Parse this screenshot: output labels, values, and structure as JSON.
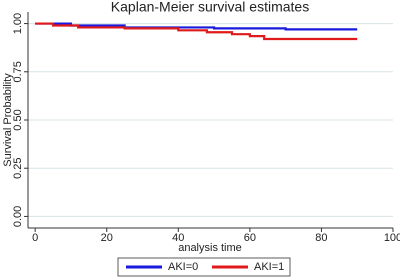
{
  "chart_data": {
    "type": "line",
    "step": true,
    "title": "Kaplan-Meier survival estimates",
    "x_label": "analysis time",
    "y_label": "Survival Probability",
    "xlim": [
      -2,
      100
    ],
    "xticks": [
      0,
      20,
      40,
      60,
      80,
      100
    ],
    "ylim": [
      -0.06,
      1.06
    ],
    "yticks": [
      {
        "value": 0,
        "label": "0.00"
      },
      {
        "value": 0.25,
        "label": "0.25"
      },
      {
        "value": 0.5,
        "label": "0.50"
      },
      {
        "value": 0.75,
        "label": "0.75"
      },
      {
        "value": 1,
        "label": "1.00"
      }
    ],
    "grid": true,
    "legend": "bottom",
    "series": [
      {
        "name": "AKI=0",
        "color": "#1a1adc",
        "x": [
          0,
          10,
          10,
          25,
          25,
          50,
          50,
          70,
          70,
          90
        ],
        "values": [
          1,
          1,
          0.99,
          0.99,
          0.98,
          0.98,
          0.975,
          0.975,
          0.97,
          0.97
        ]
      },
      {
        "name": "AKI=1",
        "color": "#e01a1a",
        "x": [
          0,
          5,
          5,
          12,
          12,
          25,
          25,
          40,
          40,
          48,
          48,
          55,
          55,
          60,
          60,
          64,
          64,
          90
        ],
        "values": [
          1,
          1,
          0.99,
          0.99,
          0.98,
          0.98,
          0.975,
          0.975,
          0.965,
          0.965,
          0.955,
          0.955,
          0.945,
          0.945,
          0.935,
          0.935,
          0.92,
          0.92
        ]
      }
    ]
  }
}
